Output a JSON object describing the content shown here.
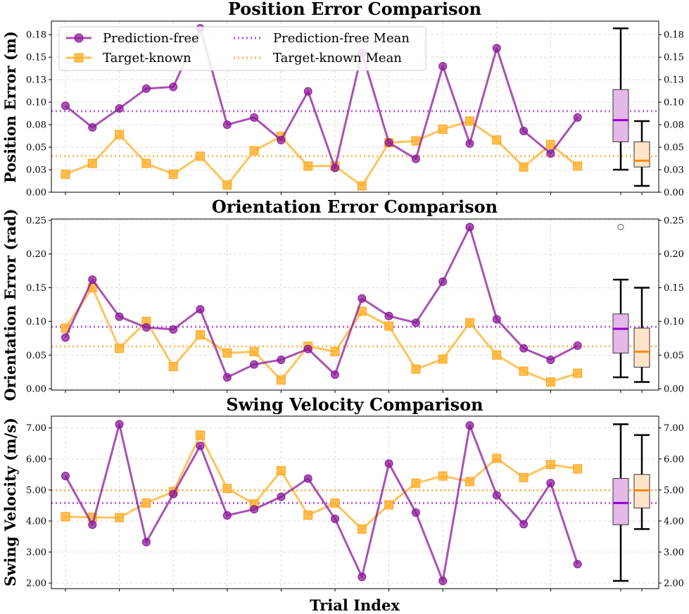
{
  "colors": {
    "prediction_free": "#8b1a9a",
    "prediction_free_mean": "#b44ee0",
    "prediction_free_median": "#9400d3",
    "prediction_free_box": "#e4b9e8",
    "target_known": "#ffb433",
    "target_known_mean": "#ffb04a",
    "target_known_median": "#ff8c00",
    "target_known_box": "#ffe4c8",
    "grid": "#dddddd"
  },
  "legend": {
    "prediction_free": "Prediction-free",
    "target_known": "Target-known",
    "prediction_free_mean": "Prediction-free Mean",
    "target_known_mean": "Target-known Mean"
  },
  "chart_data": [
    {
      "type": "line",
      "title": "Position Error Comparison",
      "ylabel": "Position Error (m)",
      "xlabel": "",
      "ylim": [
        0,
        0.19
      ],
      "yticks": [
        0.0,
        0.025,
        0.05,
        0.075,
        0.1,
        0.125,
        0.15,
        0.175
      ],
      "yticklabels": [
        "0.00",
        "0.03",
        "0.05",
        "0.08",
        "0.10",
        "0.13",
        "0.15",
        "0.18"
      ],
      "x": [
        1,
        2,
        3,
        4,
        5,
        6,
        7,
        8,
        9,
        10,
        11,
        12,
        13,
        14,
        15,
        16,
        17,
        18,
        19,
        20
      ],
      "grid": true,
      "legend_position": "top-left",
      "series": [
        {
          "name": "Prediction-free",
          "marker": "circle",
          "values": [
            0.096,
            0.072,
            0.093,
            0.115,
            0.117,
            0.182,
            0.075,
            0.083,
            0.058,
            0.112,
            0.027,
            0.155,
            0.055,
            0.037,
            0.14,
            0.054,
            0.16,
            0.068,
            0.043,
            0.083
          ],
          "mean": 0.09
        },
        {
          "name": "Target-known",
          "marker": "square",
          "values": [
            0.02,
            0.032,
            0.064,
            0.032,
            0.02,
            0.04,
            0.008,
            0.046,
            0.062,
            0.029,
            0.029,
            0.007,
            0.055,
            0.057,
            0.07,
            0.079,
            0.058,
            0.028,
            0.053,
            0.029
          ],
          "mean": 0.04
        }
      ],
      "boxes": [
        {
          "q1": 0.056,
          "median": 0.08,
          "q3": 0.114,
          "whisker_low": 0.025,
          "whisker_high": 0.182,
          "outliers": []
        },
        {
          "q1": 0.028,
          "median": 0.035,
          "q3": 0.056,
          "whisker_low": 0.007,
          "whisker_high": 0.079,
          "outliers": []
        }
      ]
    },
    {
      "type": "line",
      "title": "Orientation Error Comparison",
      "ylabel": "Orientation Error (rad)",
      "xlabel": "",
      "ylim": [
        -0.002,
        0.252
      ],
      "yticks": [
        0.0,
        0.05,
        0.1,
        0.15,
        0.2,
        0.25
      ],
      "yticklabels": [
        "0.00",
        "0.05",
        "0.10",
        "0.15",
        "0.20",
        "0.25"
      ],
      "x": [
        1,
        2,
        3,
        4,
        5,
        6,
        7,
        8,
        9,
        10,
        11,
        12,
        13,
        14,
        15,
        16,
        17,
        18,
        19,
        20
      ],
      "grid": true,
      "series": [
        {
          "name": "Prediction-free",
          "marker": "circle",
          "values": [
            0.076,
            0.162,
            0.107,
            0.091,
            0.088,
            0.118,
            0.017,
            0.036,
            0.043,
            0.059,
            0.021,
            0.134,
            0.108,
            0.098,
            0.159,
            0.24,
            0.103,
            0.06,
            0.043,
            0.064
          ],
          "mean": 0.092
        },
        {
          "name": "Target-known",
          "marker": "square",
          "values": [
            0.09,
            0.15,
            0.06,
            0.1,
            0.033,
            0.08,
            0.053,
            0.055,
            0.013,
            0.063,
            0.055,
            0.115,
            0.093,
            0.029,
            0.044,
            0.098,
            0.05,
            0.026,
            0.01,
            0.023
          ],
          "mean": 0.063
        }
      ],
      "boxes": [
        {
          "q1": 0.053,
          "median": 0.089,
          "q3": 0.111,
          "whisker_low": 0.017,
          "whisker_high": 0.162,
          "outliers": [
            0.24
          ]
        },
        {
          "q1": 0.032,
          "median": 0.055,
          "q3": 0.09,
          "whisker_low": 0.01,
          "whisker_high": 0.15,
          "outliers": []
        }
      ]
    },
    {
      "type": "line",
      "title": "Swing Velocity Comparison",
      "ylabel": "Swing Velocity (m/s)",
      "xlabel": "Trial Index",
      "ylim": [
        1.82,
        7.38
      ],
      "yticks": [
        2,
        3,
        4,
        5,
        6,
        7
      ],
      "yticklabels": [
        "2.00",
        "3.00",
        "4.00",
        "5.00",
        "6.00",
        "7.00"
      ],
      "x": [
        1,
        2,
        3,
        4,
        5,
        6,
        7,
        8,
        9,
        10,
        11,
        12,
        13,
        14,
        15,
        16,
        17,
        18,
        19,
        20
      ],
      "grid": true,
      "series": [
        {
          "name": "Prediction-free",
          "marker": "circle",
          "values": [
            5.45,
            3.88,
            7.12,
            3.32,
            4.87,
            6.42,
            4.18,
            4.38,
            4.78,
            5.37,
            4.07,
            2.2,
            5.85,
            4.27,
            2.07,
            7.08,
            4.83,
            3.9,
            5.22,
            2.61
          ],
          "mean": 4.58
        },
        {
          "name": "Target-known",
          "marker": "square",
          "values": [
            4.14,
            4.12,
            4.11,
            4.58,
            4.95,
            6.77,
            5.05,
            4.55,
            5.62,
            4.19,
            4.58,
            3.74,
            4.52,
            5.22,
            5.45,
            5.27,
            6.02,
            5.4,
            5.82,
            5.68
          ],
          "mean": 4.99
        }
      ],
      "boxes": [
        {
          "q1": 3.88,
          "median": 4.58,
          "q3": 5.37,
          "whisker_low": 2.07,
          "whisker_high": 7.12,
          "outliers": []
        },
        {
          "q1": 4.42,
          "median": 4.99,
          "q3": 5.5,
          "whisker_low": 3.74,
          "whisker_high": 6.77,
          "outliers": []
        }
      ]
    }
  ]
}
